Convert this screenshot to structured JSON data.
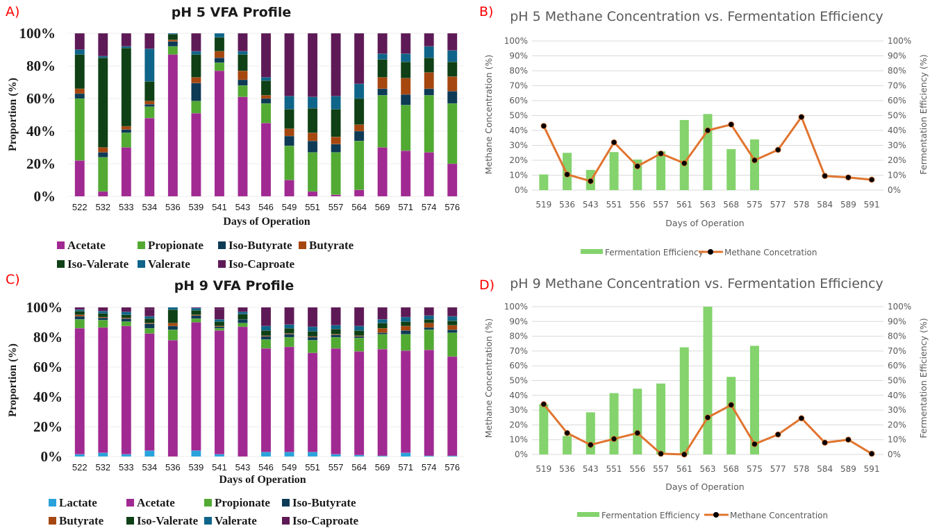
{
  "panels": {
    "a": "A)",
    "b": "B)",
    "c": "C)",
    "d": "D)"
  },
  "colors": {
    "Lactate": "#29a3dc",
    "Acetate": "#a02a92",
    "Propionate": "#52aa33",
    "Iso-Butyrate": "#0d3a55",
    "Butyrate": "#a5470f",
    "Iso-Valerate": "#0f4016",
    "Valerate": "#0f6589",
    "Iso-Caproate": "#5e1a56",
    "fe_bar": "#84d36d",
    "methane_line": "#e0742e",
    "methane_marker": "#000000",
    "panel_letter": "#ff0000"
  },
  "chart_data": [
    {
      "id": "A",
      "type": "bar",
      "stacked": true,
      "title": "pH 5 VFA Profile",
      "xlabel": "Days of Operation",
      "ylabel": "Proportion (%)",
      "ylim": [
        0,
        100
      ],
      "yticks": [
        "0%",
        "20%",
        "40%",
        "60%",
        "80%",
        "100%"
      ],
      "legend_position": "bottom",
      "categories": [
        "522",
        "532",
        "533",
        "534",
        "536",
        "539",
        "541",
        "543",
        "546",
        "549",
        "551",
        "557",
        "564",
        "569",
        "571",
        "574",
        "576"
      ],
      "series": [
        {
          "name": "Acetate",
          "values": [
            22,
            3,
            30,
            48,
            87,
            51,
            77,
            61,
            45,
            10,
            3,
            1,
            4,
            30,
            28,
            27,
            20
          ]
        },
        {
          "name": "Propionate",
          "values": [
            38,
            21,
            9,
            7,
            5,
            7.5,
            5,
            7,
            12,
            21,
            24,
            26,
            30,
            32,
            28,
            35,
            37
          ]
        },
        {
          "name": "Iso-Butyrate",
          "values": [
            3,
            3,
            2,
            1.5,
            3,
            11,
            3,
            3.5,
            3,
            6,
            7,
            5,
            6,
            4,
            6.5,
            4,
            7.5
          ]
        },
        {
          "name": "Butyrate",
          "values": [
            3,
            3,
            2,
            2,
            1,
            3.5,
            4,
            5.5,
            2,
            4.5,
            5,
            4.5,
            4,
            7,
            10,
            10,
            9
          ]
        },
        {
          "name": "Iso-Valerate",
          "values": [
            21,
            55,
            48,
            12,
            3.5,
            14,
            8.5,
            10,
            9,
            12,
            15,
            17,
            16,
            11,
            10,
            9,
            9
          ]
        },
        {
          "name": "Valerate",
          "values": [
            3,
            1,
            1,
            20,
            0.5,
            2,
            2.5,
            2,
            2,
            8,
            7,
            8,
            9,
            3.5,
            5,
            7,
            7
          ]
        },
        {
          "name": "Iso-Caproate",
          "values": [
            10,
            14,
            8,
            9.5,
            0,
            11,
            0,
            11,
            27,
            38.5,
            39,
            38.5,
            31,
            12.5,
            12.5,
            8,
            10.5
          ]
        }
      ]
    },
    {
      "id": "B",
      "type": "bar+line",
      "title": "pH 5 Methane Concentration vs. Fermentation Efficiency",
      "xlabel": "Days of Operation",
      "ylabel": "Methane Concentration (%)",
      "ylabel_right": "Fermentation Efficiency (%)",
      "ylim": [
        0,
        100
      ],
      "ylim_right": [
        0,
        100
      ],
      "yticks": [
        "0%",
        "10%",
        "20%",
        "30%",
        "40%",
        "50%",
        "60%",
        "70%",
        "80%",
        "90%",
        "100%"
      ],
      "grid": true,
      "legend_position": "bottom",
      "categories": [
        "519",
        "536",
        "543",
        "551",
        "556",
        "557",
        "561",
        "563",
        "568",
        "575",
        "577",
        "578",
        "584",
        "589",
        "591"
      ],
      "series": [
        {
          "name": "Fermentation Efficiency",
          "type": "bar",
          "axis": "right",
          "values": [
            10.5,
            25,
            13.5,
            25.5,
            20.5,
            26,
            47,
            51,
            27.5,
            34,
            null,
            null,
            null,
            null,
            null
          ]
        },
        {
          "name": "Methane Concetration",
          "type": "line",
          "axis": "left",
          "values": [
            43,
            10.5,
            6,
            32,
            16,
            24.5,
            18,
            40,
            44,
            20,
            27,
            49,
            9.5,
            8.5,
            7
          ]
        }
      ]
    },
    {
      "id": "C",
      "type": "bar",
      "stacked": true,
      "title": "pH 9 VFA Profile",
      "xlabel": "Days of Operation",
      "ylabel": "Proportion (%)",
      "ylim": [
        0,
        100
      ],
      "yticks": [
        "0%",
        "20%",
        "40%",
        "60%",
        "80%",
        "100%"
      ],
      "legend_position": "bottom",
      "categories": [
        "522",
        "532",
        "533",
        "534",
        "536",
        "539",
        "541",
        "543",
        "546",
        "549",
        "551",
        "557",
        "564",
        "569",
        "571",
        "574",
        "576"
      ],
      "series": [
        {
          "name": "Lactate",
          "values": [
            1.5,
            2.5,
            1.5,
            4,
            0,
            4,
            1.5,
            0,
            3,
            3,
            3,
            1.5,
            1,
            0.5,
            2.5,
            0.5,
            0.5
          ]
        },
        {
          "name": "Acetate",
          "values": [
            84.5,
            84,
            86,
            78.5,
            78,
            86,
            83,
            87,
            69.5,
            70.5,
            66.5,
            71,
            69.5,
            71.5,
            68.5,
            71,
            66.5
          ]
        },
        {
          "name": "Propionate",
          "values": [
            6,
            5,
            3,
            3.5,
            7,
            2.5,
            1.5,
            2.5,
            6,
            6.5,
            8.5,
            7.5,
            9,
            10,
            11,
            13.5,
            16
          ]
        },
        {
          "name": "Iso-Butyrate",
          "values": [
            2,
            1.5,
            2,
            3,
            2.5,
            2,
            1,
            2.5,
            2,
            2,
            2,
            1.5,
            1,
            1,
            2.5,
            1.5,
            2
          ]
        },
        {
          "name": "Butyrate",
          "values": [
            1,
            0.5,
            0.5,
            0.5,
            2,
            0.5,
            0.5,
            0,
            0.5,
            0.5,
            0.5,
            0.5,
            0.5,
            3,
            3,
            3,
            3
          ]
        },
        {
          "name": "Iso-Valerate",
          "values": [
            2.5,
            2.5,
            2,
            3,
            9,
            3,
            3,
            3.5,
            3.5,
            3.5,
            3.5,
            3.5,
            3.5,
            3.5,
            3,
            2.5,
            3
          ]
        },
        {
          "name": "Valerate",
          "values": [
            1,
            1.5,
            2,
            1.5,
            1.5,
            1.5,
            1.5,
            1.5,
            3,
            2.5,
            3,
            2.5,
            3,
            2.5,
            3,
            2.5,
            3
          ]
        },
        {
          "name": "Iso-Caproate",
          "values": [
            1.5,
            2.5,
            3,
            5,
            0,
            0.5,
            7,
            3,
            12.5,
            11.5,
            13,
            12,
            12.5,
            8,
            6.5,
            5.5,
            6
          ]
        }
      ]
    },
    {
      "id": "D",
      "type": "bar+line",
      "title": "pH 9 Methane Concentration vs. Fermentation Efficiency",
      "xlabel": "Days of Operation",
      "ylabel": "Methane Concentration (%)",
      "ylabel_right": "Fermentation Efficiency (%)",
      "ylim": [
        0,
        100
      ],
      "ylim_right": [
        0,
        100
      ],
      "yticks": [
        "0%",
        "10%",
        "20%",
        "30%",
        "40%",
        "50%",
        "60%",
        "70%",
        "80%",
        "90%",
        "100%"
      ],
      "grid": true,
      "legend_position": "bottom",
      "categories": [
        "519",
        "536",
        "543",
        "551",
        "556",
        "557",
        "561",
        "563",
        "568",
        "575",
        "577",
        "578",
        "584",
        "589",
        "591"
      ],
      "series": [
        {
          "name": "Fermentation Efficiency",
          "type": "bar",
          "axis": "right",
          "values": [
            34,
            12.5,
            28.5,
            41.5,
            44.5,
            48,
            72.5,
            100,
            52.5,
            73.5,
            null,
            null,
            null,
            null,
            null
          ]
        },
        {
          "name": "Methane Concentration",
          "type": "line",
          "axis": "left",
          "values": [
            34,
            14.5,
            6.5,
            10.5,
            14.5,
            0.5,
            0,
            25,
            33.5,
            7,
            13.5,
            24.5,
            8,
            10,
            0.5
          ]
        }
      ]
    }
  ]
}
